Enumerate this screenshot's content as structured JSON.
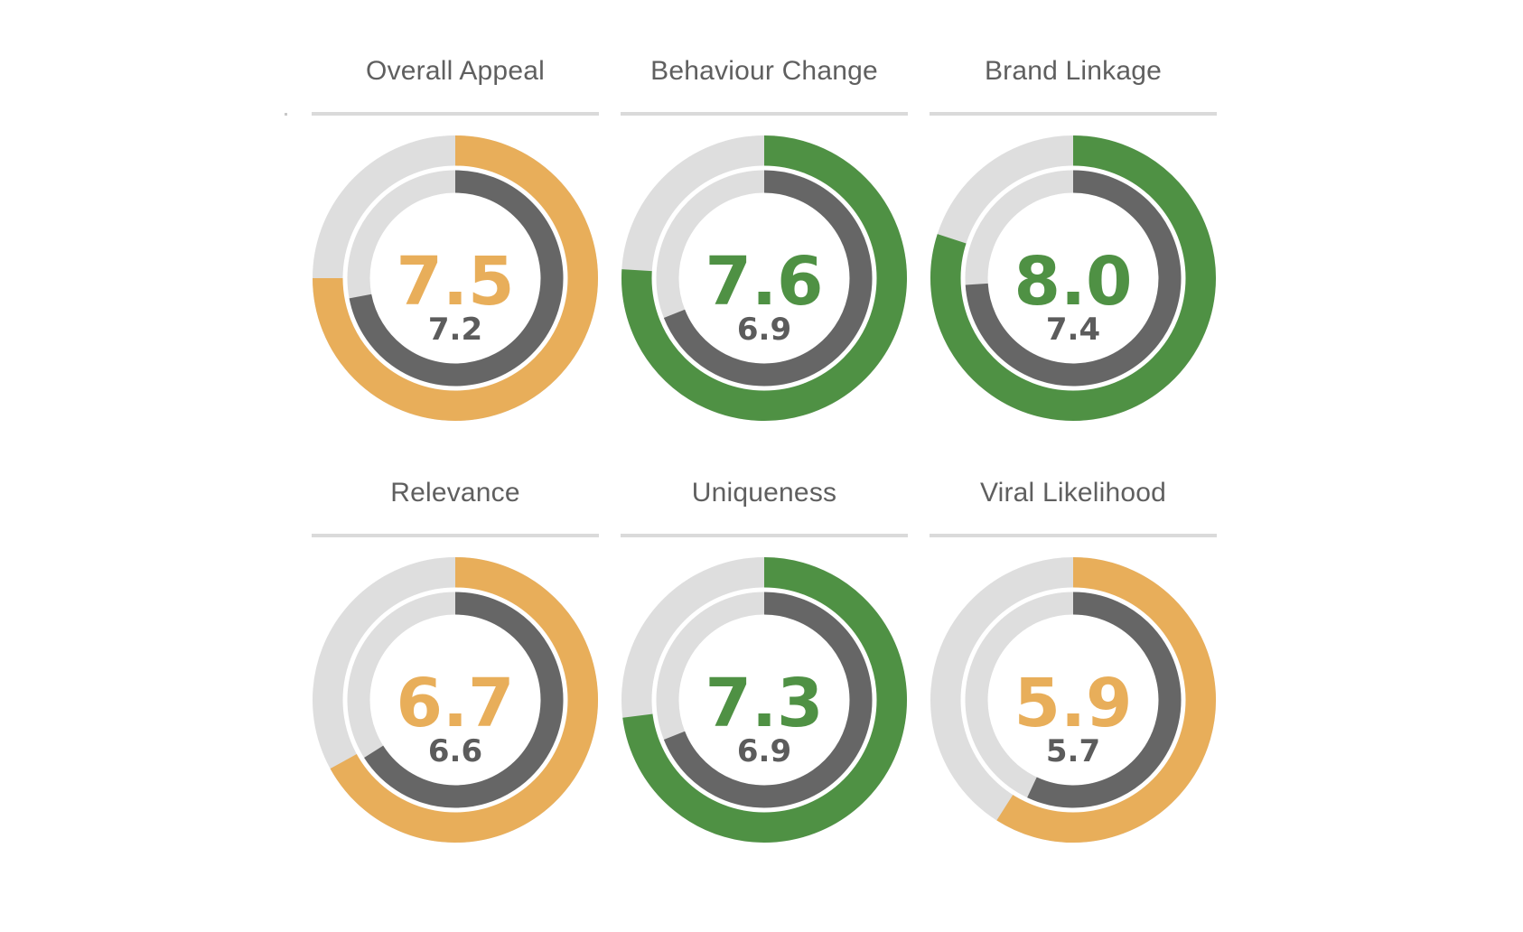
{
  "colors": {
    "amber": "#e8ae5a",
    "green": "#4f9144",
    "inner": "#666666",
    "track": "#dedede",
    "separator": "#ffffff"
  },
  "chart_data": {
    "type": "donut-gauge",
    "scale_max": 10,
    "gauges": [
      {
        "label": "Overall Appeal",
        "score": "7.5",
        "value": 7.5,
        "benchmark": "7.2",
        "benchmark_value": 7.2,
        "status_color": "amber"
      },
      {
        "label": "Behaviour Change",
        "score": "7.6",
        "value": 7.6,
        "benchmark": "6.9",
        "benchmark_value": 6.9,
        "status_color": "green"
      },
      {
        "label": "Brand Linkage",
        "score": "8.0",
        "value": 8.0,
        "benchmark": "7.4",
        "benchmark_value": 7.4,
        "status_color": "green"
      },
      {
        "label": "Relevance",
        "score": "6.7",
        "value": 6.7,
        "benchmark": "6.6",
        "benchmark_value": 6.6,
        "status_color": "amber"
      },
      {
        "label": "Uniqueness",
        "score": "7.3",
        "value": 7.3,
        "benchmark": "6.9",
        "benchmark_value": 6.9,
        "status_color": "green"
      },
      {
        "label": "Viral Likelihood",
        "score": "5.9",
        "value": 5.9,
        "benchmark": "5.7",
        "benchmark_value": 5.7,
        "status_color": "amber"
      }
    ]
  }
}
